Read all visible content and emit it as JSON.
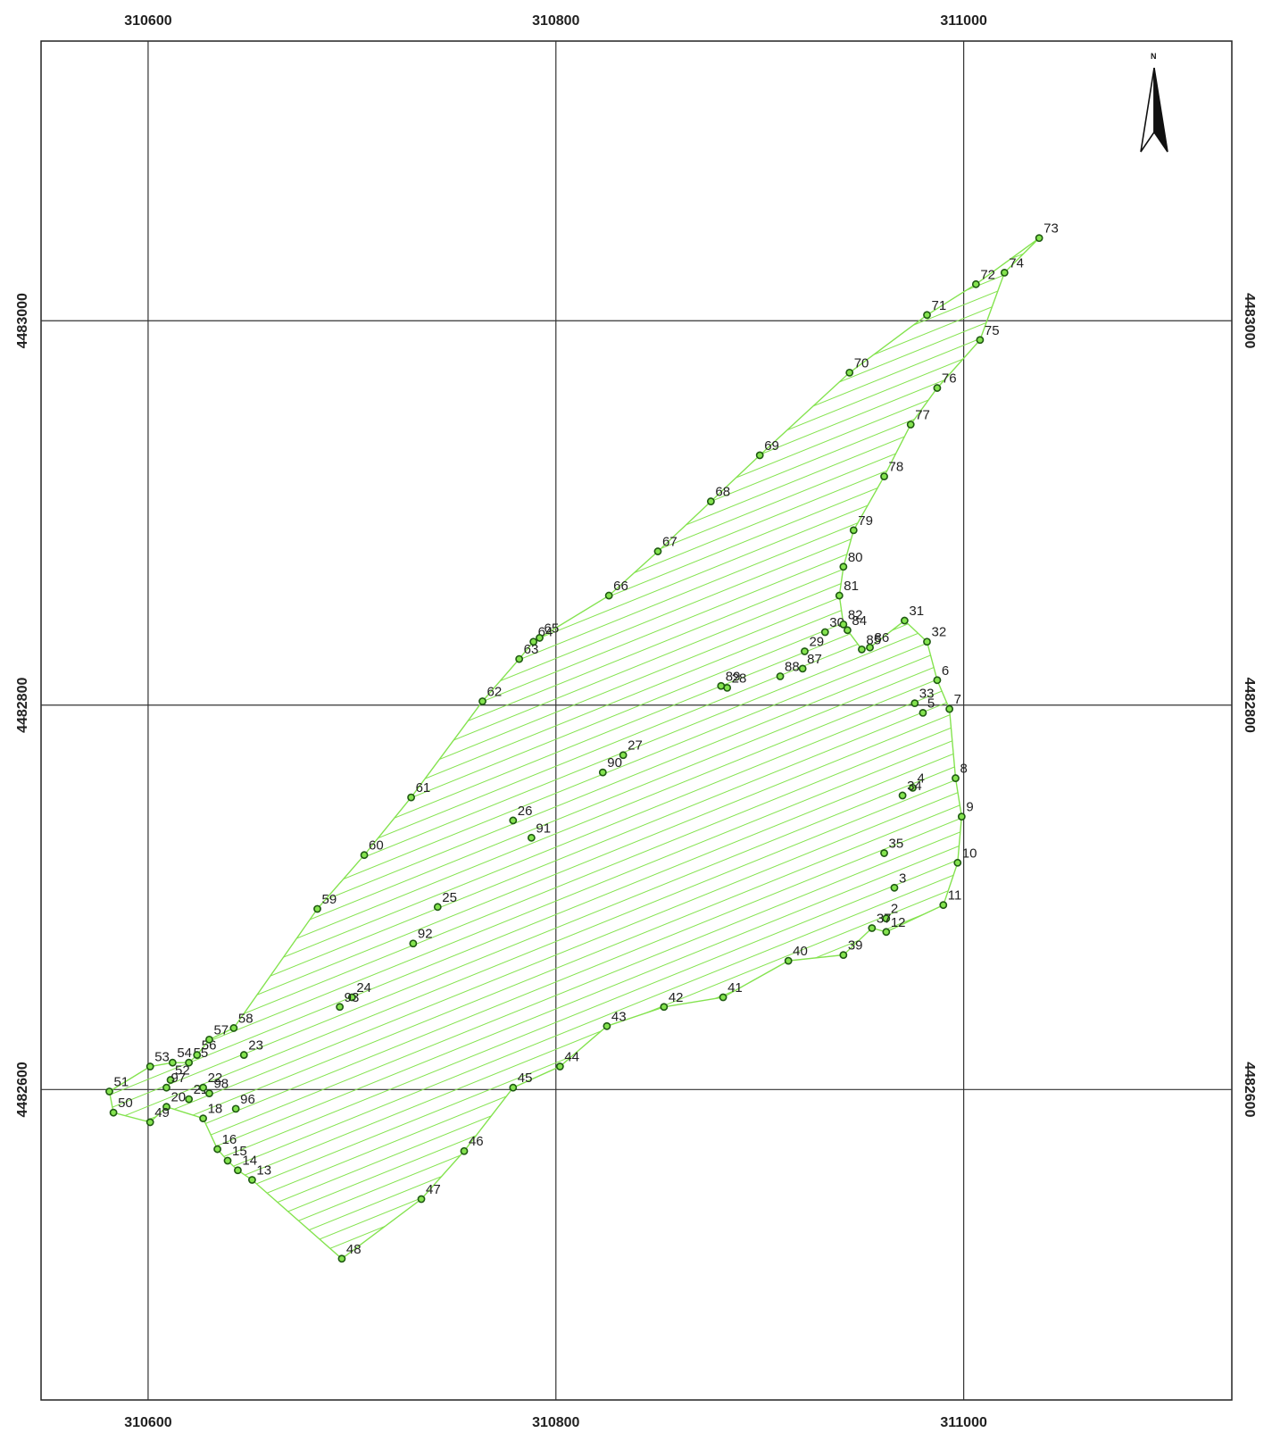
{
  "map": {
    "frame": {
      "x_min": 310547.5,
      "x_max": 311131.5,
      "y_min": 4482438.5,
      "y_max": 4483145.5
    },
    "grid_x": [
      310600,
      310800,
      311000
    ],
    "grid_y": [
      4482600,
      4482800,
      4483000
    ],
    "x_tick_labels": [
      "310600",
      "310800",
      "311000"
    ],
    "y_tick_labels": [
      "4482600",
      "4482800",
      "4483000"
    ],
    "north_label": "N",
    "colors": {
      "fill": "#84e34f",
      "point": "#1f5a12",
      "frame": "#222222",
      "grid": "#333333"
    },
    "points": [
      {
        "id": "2",
        "x": 310962,
        "y": 4482689
      },
      {
        "id": "3",
        "x": 310966,
        "y": 4482705
      },
      {
        "id": "4",
        "x": 310975,
        "y": 4482757
      },
      {
        "id": "5",
        "x": 310980,
        "y": 4482796
      },
      {
        "id": "6",
        "x": 310987,
        "y": 4482813
      },
      {
        "id": "7",
        "x": 310993,
        "y": 4482798
      },
      {
        "id": "8",
        "x": 310996,
        "y": 4482762
      },
      {
        "id": "9",
        "x": 310999,
        "y": 4482742
      },
      {
        "id": "10",
        "x": 310997,
        "y": 4482718
      },
      {
        "id": "11",
        "x": 310990,
        "y": 4482696
      },
      {
        "id": "12",
        "x": 310962,
        "y": 4482682
      },
      {
        "id": "13",
        "x": 310651,
        "y": 4482553
      },
      {
        "id": "14",
        "x": 310644,
        "y": 4482558
      },
      {
        "id": "15",
        "x": 310639,
        "y": 4482563
      },
      {
        "id": "16",
        "x": 310634,
        "y": 4482569
      },
      {
        "id": "18",
        "x": 310627,
        "y": 4482585
      },
      {
        "id": "20",
        "x": 310609,
        "y": 4482591
      },
      {
        "id": "21",
        "x": 310620,
        "y": 4482595
      },
      {
        "id": "22",
        "x": 310627,
        "y": 4482601
      },
      {
        "id": "23",
        "x": 310647,
        "y": 4482618
      },
      {
        "id": "24",
        "x": 310700,
        "y": 4482648
      },
      {
        "id": "25",
        "x": 310742,
        "y": 4482695
      },
      {
        "id": "26",
        "x": 310779,
        "y": 4482740
      },
      {
        "id": "27",
        "x": 310833,
        "y": 4482774
      },
      {
        "id": "28",
        "x": 310884,
        "y": 4482809
      },
      {
        "id": "29",
        "x": 310922,
        "y": 4482828
      },
      {
        "id": "30",
        "x": 310932,
        "y": 4482838
      },
      {
        "id": "31",
        "x": 310971,
        "y": 4482844
      },
      {
        "id": "32",
        "x": 310982,
        "y": 4482833
      },
      {
        "id": "33",
        "x": 310976,
        "y": 4482801
      },
      {
        "id": "34",
        "x": 310970,
        "y": 4482753
      },
      {
        "id": "35",
        "x": 310961,
        "y": 4482723
      },
      {
        "id": "37",
        "x": 310955,
        "y": 4482684
      },
      {
        "id": "39",
        "x": 310941,
        "y": 4482670
      },
      {
        "id": "40",
        "x": 310914,
        "y": 4482667
      },
      {
        "id": "41",
        "x": 310882,
        "y": 4482648
      },
      {
        "id": "42",
        "x": 310853,
        "y": 4482643
      },
      {
        "id": "43",
        "x": 310825,
        "y": 4482633
      },
      {
        "id": "44",
        "x": 310802,
        "y": 4482612
      },
      {
        "id": "45",
        "x": 310779,
        "y": 4482601
      },
      {
        "id": "46",
        "x": 310755,
        "y": 4482568
      },
      {
        "id": "47",
        "x": 310734,
        "y": 4482543
      },
      {
        "id": "48",
        "x": 310695,
        "y": 4482512
      },
      {
        "id": "49",
        "x": 310601,
        "y": 4482583
      },
      {
        "id": "50",
        "x": 310583,
        "y": 4482588
      },
      {
        "id": "51",
        "x": 310581,
        "y": 4482599
      },
      {
        "id": "52",
        "x": 310611,
        "y": 4482605
      },
      {
        "id": "53",
        "x": 310601,
        "y": 4482612
      },
      {
        "id": "54",
        "x": 310612,
        "y": 4482614
      },
      {
        "id": "55",
        "x": 310620,
        "y": 4482614
      },
      {
        "id": "56",
        "x": 310624,
        "y": 4482618
      },
      {
        "id": "57",
        "x": 310630,
        "y": 4482626
      },
      {
        "id": "58",
        "x": 310642,
        "y": 4482632
      },
      {
        "id": "59",
        "x": 310683,
        "y": 4482694
      },
      {
        "id": "60",
        "x": 310706,
        "y": 4482722
      },
      {
        "id": "61",
        "x": 310729,
        "y": 4482752
      },
      {
        "id": "62",
        "x": 310764,
        "y": 4482802
      },
      {
        "id": "63",
        "x": 310782,
        "y": 4482824
      },
      {
        "id": "64",
        "x": 310789,
        "y": 4482833
      },
      {
        "id": "65",
        "x": 310792,
        "y": 4482835
      },
      {
        "id": "66",
        "x": 310826,
        "y": 4482857
      },
      {
        "id": "67",
        "x": 310850,
        "y": 4482880
      },
      {
        "id": "68",
        "x": 310876,
        "y": 4482906
      },
      {
        "id": "69",
        "x": 310900,
        "y": 4482930
      },
      {
        "id": "70",
        "x": 310944,
        "y": 4482973
      },
      {
        "id": "71",
        "x": 310982,
        "y": 4483003
      },
      {
        "id": "72",
        "x": 311006,
        "y": 4483019
      },
      {
        "id": "73",
        "x": 311037,
        "y": 4483043
      },
      {
        "id": "74",
        "x": 311020,
        "y": 4483025
      },
      {
        "id": "75",
        "x": 311008,
        "y": 4482990
      },
      {
        "id": "76",
        "x": 310987,
        "y": 4482965
      },
      {
        "id": "77",
        "x": 310974,
        "y": 4482946
      },
      {
        "id": "78",
        "x": 310961,
        "y": 4482919
      },
      {
        "id": "79",
        "x": 310946,
        "y": 4482891
      },
      {
        "id": "80",
        "x": 310941,
        "y": 4482872
      },
      {
        "id": "81",
        "x": 310939,
        "y": 4482857
      },
      {
        "id": "82",
        "x": 310941,
        "y": 4482842
      },
      {
        "id": "84",
        "x": 310943,
        "y": 4482839
      },
      {
        "id": "85",
        "x": 310950,
        "y": 4482829
      },
      {
        "id": "86",
        "x": 310954,
        "y": 4482830
      },
      {
        "id": "87",
        "x": 310921,
        "y": 4482819
      },
      {
        "id": "88",
        "x": 310910,
        "y": 4482815
      },
      {
        "id": "89",
        "x": 310881,
        "y": 4482810
      },
      {
        "id": "90",
        "x": 310823,
        "y": 4482765
      },
      {
        "id": "91",
        "x": 310788,
        "y": 4482731
      },
      {
        "id": "92",
        "x": 310730,
        "y": 4482676
      },
      {
        "id": "93",
        "x": 310694,
        "y": 4482643
      },
      {
        "id": "96",
        "x": 310643,
        "y": 4482590
      },
      {
        "id": "97",
        "x": 310609,
        "y": 4482601
      },
      {
        "id": "98",
        "x": 310630,
        "y": 4482598
      }
    ],
    "boundary": [
      "73",
      "74",
      "75",
      "76",
      "77",
      "78",
      "79",
      "80",
      "81",
      "82",
      "84",
      "85",
      "86",
      "31",
      "32",
      "6",
      "7",
      "8",
      "9",
      "10",
      "11",
      "12",
      "37",
      "39",
      "40",
      "41",
      "42",
      "43",
      "44",
      "45",
      "46",
      "47",
      "48",
      "13",
      "14",
      "15",
      "16",
      "18",
      "20",
      "49",
      "50",
      "51",
      "53",
      "54",
      "55",
      "56",
      "57",
      "58",
      "59",
      "60",
      "61",
      "62",
      "63",
      "64",
      "65",
      "66",
      "67",
      "68",
      "69",
      "70",
      "71",
      "72"
    ]
  }
}
